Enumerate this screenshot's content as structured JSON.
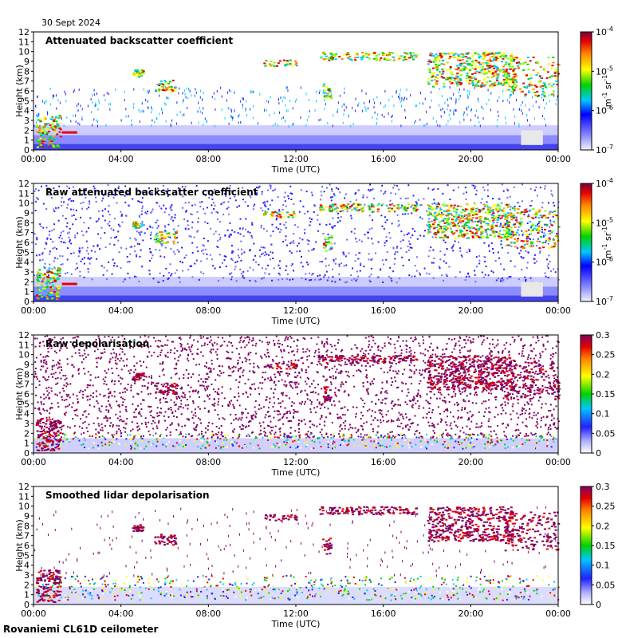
{
  "date_label": "30 Sept 2024",
  "instrument_label": "Rovaniemi CL61D ceilometer",
  "chart_data": [
    {
      "type": "heatmap",
      "title": "Attenuated backscatter coefficient",
      "xlabel": "Time (UTC)",
      "ylabel": "Height (km)",
      "xticks": [
        "00:00",
        "04:00",
        "08:00",
        "12:00",
        "16:00",
        "20:00",
        "00:00"
      ],
      "yticks": [
        "0",
        "1",
        "2",
        "3",
        "4",
        "5",
        "6",
        "7",
        "8",
        "9",
        "10",
        "11",
        "12"
      ],
      "ylim": [
        0,
        12
      ],
      "xlim_hours": [
        0,
        24
      ],
      "colorbar": {
        "scale": "log",
        "min": 1e-07,
        "max": 0.0001,
        "ticks": [
          {
            "base": "10",
            "exp": "-7"
          },
          {
            "base": "10",
            "exp": "-6"
          },
          {
            "base": "10",
            "exp": "-5"
          },
          {
            "base": "10",
            "exp": "-4"
          }
        ],
        "unit_main": "m",
        "unit_exp1": "-1",
        "unit_mid": " sr",
        "unit_exp2": "-1"
      }
    },
    {
      "type": "heatmap",
      "title": "Raw attenuated backscatter coefficient",
      "xlabel": "Time (UTC)",
      "ylabel": "Height (km)",
      "xticks": [
        "00:00",
        "04:00",
        "08:00",
        "12:00",
        "16:00",
        "20:00",
        "00:00"
      ],
      "yticks": [
        "0",
        "1",
        "2",
        "3",
        "4",
        "5",
        "6",
        "7",
        "8",
        "9",
        "10",
        "11",
        "12"
      ],
      "ylim": [
        0,
        12
      ],
      "xlim_hours": [
        0,
        24
      ],
      "colorbar": {
        "scale": "log",
        "min": 1e-07,
        "max": 0.0001,
        "ticks": [
          {
            "base": "10",
            "exp": "-7"
          },
          {
            "base": "10",
            "exp": "-6"
          },
          {
            "base": "10",
            "exp": "-5"
          },
          {
            "base": "10",
            "exp": "-4"
          }
        ],
        "unit_main": "m",
        "unit_exp1": "-1",
        "unit_mid": " sr",
        "unit_exp2": "-1"
      }
    },
    {
      "type": "heatmap",
      "title": "Raw depolarisation",
      "xlabel": "Time (UTC)",
      "ylabel": "Height (km)",
      "xticks": [
        "00:00",
        "04:00",
        "08:00",
        "12:00",
        "16:00",
        "20:00",
        "00:00"
      ],
      "yticks": [
        "0",
        "1",
        "2",
        "3",
        "4",
        "5",
        "6",
        "7",
        "8",
        "9",
        "10",
        "11",
        "12"
      ],
      "ylim": [
        0,
        12
      ],
      "xlim_hours": [
        0,
        24
      ],
      "colorbar": {
        "scale": "linear",
        "min": 0,
        "max": 0.3,
        "ticks": [
          "0",
          "0.05",
          "0.1",
          "0.15",
          "0.2",
          "0.25",
          "0.3"
        ]
      }
    },
    {
      "type": "heatmap",
      "title": "Smoothed lidar depolarisation",
      "xlabel": "Time (UTC)",
      "ylabel": "Height (km)",
      "xticks": [
        "00:00",
        "04:00",
        "08:00",
        "12:00",
        "16:00",
        "20:00",
        "00:00"
      ],
      "yticks": [
        "0",
        "1",
        "2",
        "3",
        "4",
        "5",
        "6",
        "7",
        "8",
        "9",
        "10",
        "11",
        "12"
      ],
      "ylim": [
        0,
        12
      ],
      "xlim_hours": [
        0,
        24
      ],
      "colorbar": {
        "scale": "linear",
        "min": 0,
        "max": 0.3,
        "ticks": [
          "0",
          "0.05",
          "0.1",
          "0.15",
          "0.2",
          "0.25",
          "0.3"
        ]
      }
    }
  ]
}
